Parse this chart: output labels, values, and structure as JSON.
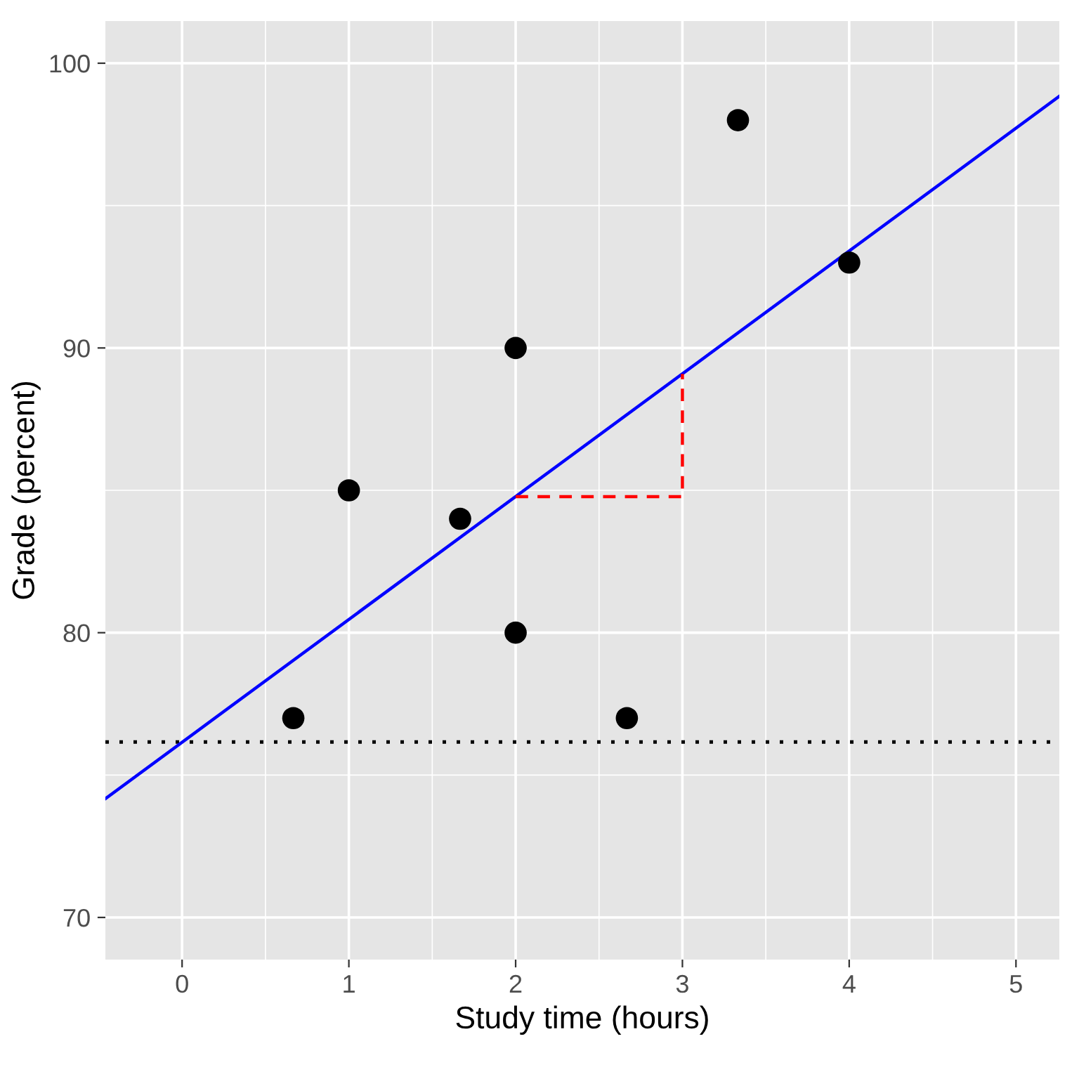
{
  "chart_data": {
    "type": "scatter",
    "xlabel": "Study time (hours)",
    "ylabel": "Grade (percent)",
    "xlim": [
      -0.46,
      5.26
    ],
    "ylim": [
      68.52,
      101.48
    ],
    "xticks": [
      0,
      1,
      2,
      3,
      4,
      5
    ],
    "yticks": [
      70,
      80,
      90,
      100
    ],
    "grid": true,
    "marker": "circle",
    "series": [
      {
        "color": "#000000",
        "x": [
          0.667,
          1,
          1.667,
          2,
          2,
          2.667,
          3.333,
          4
        ],
        "values": [
          77,
          85,
          84,
          90,
          80,
          77,
          98,
          93
        ]
      },
      {
        "type": "line",
        "color": "#0000ff",
        "line_style": "solid",
        "marker": "none",
        "x": [
          -0.46,
          5.26
        ],
        "values": [
          74.17,
          98.84
        ]
      },
      {
        "type": "line",
        "color": "#ff0000",
        "line_style": "dashed",
        "marker": "none",
        "x": [
          2,
          3,
          3
        ],
        "values": [
          84.78,
          84.78,
          89.09
        ]
      }
    ],
    "ref_lines": [
      {
        "axis": "y",
        "value": 76.16,
        "color": "#000000",
        "line_style": "dotted"
      }
    ]
  }
}
